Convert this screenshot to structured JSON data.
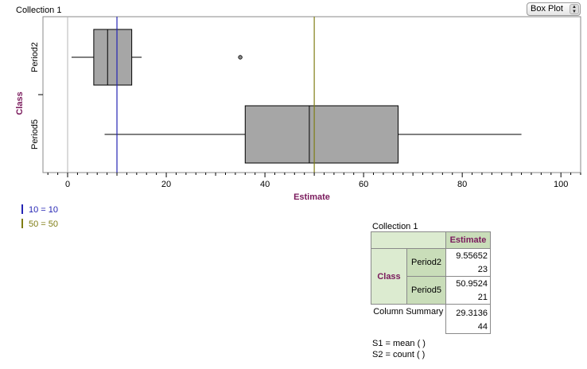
{
  "collection_title": "Collection 1",
  "plot_type_select": {
    "value": "Box Plot",
    "stepper_glyph": "▲▼"
  },
  "chart_data": {
    "type": "boxplot",
    "orientation": "horizontal",
    "xlabel": "Estimate",
    "ylabel": "Class",
    "xlim": [
      -5,
      104
    ],
    "xticks": [
      0,
      20,
      40,
      60,
      80,
      100
    ],
    "categories": [
      "Period2",
      "Period5"
    ],
    "boxes": [
      {
        "name": "Period2",
        "min": 0.8,
        "q1": 5.3,
        "median": 8.1,
        "q3": 13.0,
        "max": 15.0,
        "outliers": [
          35.0
        ]
      },
      {
        "name": "Period5",
        "min": 7.5,
        "q1": 36.0,
        "median": 49.0,
        "q3": 67.0,
        "max": 92.0,
        "outliers": []
      }
    ],
    "reference_lines": [
      {
        "label": "10 = 10",
        "value": 10,
        "color": "#2525b4"
      },
      {
        "label": "50 = 50",
        "value": 50,
        "color": "#7f7d14"
      }
    ],
    "colors": {
      "box_fill": "#a6a6a6",
      "axis_title": "#7a1a5c"
    }
  },
  "summary": {
    "title": "Collection 1",
    "column_header": "Estimate",
    "row_attribute": "Class",
    "rows": [
      {
        "label": "Period2",
        "mean": "9.55652",
        "count": "23"
      },
      {
        "label": "Period5",
        "mean": "50.9524",
        "count": "21"
      }
    ],
    "column_summary_label": "Column Summary",
    "column_summary": {
      "mean": "29.3136",
      "count": "44"
    },
    "formula_s1": "S1 = mean (   )",
    "formula_s2": "S2 = count (   )"
  }
}
